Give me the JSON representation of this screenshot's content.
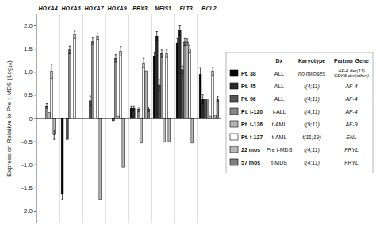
{
  "chart_data": {
    "type": "bar",
    "ylabel": "Expression Relative to Pre t-MDS (Log₁₀)",
    "categories": [
      "HOXA4",
      "HOXA5",
      "HOXA7",
      "HOXA9",
      "PBX3",
      "MEIS1",
      "FLT3",
      "BCL2"
    ],
    "ylim": [
      -2.25,
      2.25
    ],
    "yticks": [
      {
        "value": -2.0,
        "label": "-2.0"
      },
      -1.5,
      {
        "value": -1.0,
        "label": "-1.0"
      },
      -0.5,
      0,
      0.5,
      {
        "value": 1.0,
        "label": "1.0"
      },
      1.5,
      {
        "value": 2.0,
        "label": "2.0"
      }
    ],
    "grid": false,
    "legend": "right",
    "legend_headers": [
      "Dx",
      "Karyotype",
      "Partner Gene"
    ],
    "series": [
      {
        "name": "Pt. 38",
        "color": "#000000",
        "values": [
          0.0,
          -1.63,
          0.0,
          0.0,
          0.22,
          1.35,
          1.63,
          0.95
        ],
        "errors": [
          0.0,
          0.12,
          0.0,
          0.0,
          0.05,
          0.08,
          0.1,
          0.15
        ],
        "dx": "ALL",
        "karyotype": "no mitoses",
        "partner": "AF-4 der(11)\nCDK6 der(other)"
      },
      {
        "name": "Pt. 45",
        "color": "#2a2a2a",
        "values": [
          0.0,
          0.0,
          0.0,
          0.0,
          0.22,
          1.78,
          1.9,
          0.42
        ],
        "errors": [
          0.0,
          0.0,
          0.0,
          0.0,
          0.05,
          0.1,
          0.1,
          0.1
        ],
        "dx": "ALL",
        "karyotype": "t(4;11)",
        "partner": "AF-4"
      },
      {
        "name": "Pt. 96",
        "color": "#555555",
        "values": [
          0.0,
          -0.45,
          0.38,
          -0.05,
          0.0,
          0.72,
          1.05,
          0.42
        ],
        "errors": [
          0.0,
          0.0,
          0.1,
          0.0,
          0.0,
          0.12,
          0.08,
          0.0
        ],
        "dx": "ALL",
        "karyotype": "t(4;11)",
        "partner": "AF-4"
      },
      {
        "name": "Pt. t-120",
        "color": "#888888",
        "values": [
          0.27,
          1.48,
          1.67,
          1.3,
          0.2,
          1.4,
          1.65,
          0.42
        ],
        "errors": [
          0.05,
          0.08,
          0.08,
          0.08,
          0.05,
          0.08,
          0.08,
          0.0
        ],
        "dx": "t-ALL",
        "karyotype": "t(4;11)",
        "partner": "AF-4"
      },
      {
        "name": "Pt. t-126",
        "color": "#b8b8b8",
        "values": [
          0.13,
          0.0,
          0.0,
          0.05,
          -0.53,
          -0.5,
          1.65,
          0.05
        ],
        "errors": [
          0.0,
          0.0,
          0.0,
          0.0,
          0.0,
          0.0,
          0.07,
          0.0
        ],
        "dx": "t-AML",
        "karyotype": "t(9;11)",
        "partner": "AF-9"
      },
      {
        "name": "Pt. t-127",
        "color": "#ffffff",
        "values": [
          1.02,
          1.81,
          1.78,
          1.45,
          1.2,
          1.4,
          1.5,
          1.02
        ],
        "errors": [
          0.15,
          0.08,
          0.07,
          0.1,
          0.1,
          0.08,
          0.08,
          0.08
        ],
        "dx": "t-AML",
        "karyotype": "t(11;19)",
        "partner": "ENL"
      },
      {
        "name": "22 mos",
        "color": "#ffffff",
        "values": [
          -0.35,
          0.0,
          -1.75,
          -1.05,
          1.03,
          -0.5,
          -0.53,
          0.07
        ],
        "errors": [
          0.1,
          0.0,
          0.0,
          0.0,
          0.0,
          0.0,
          0.0,
          0.0
        ],
        "dx": "Pre t-MDS",
        "karyotype": "t(4;11)",
        "partner": "FRYL"
      },
      {
        "name": "57 mos",
        "color": "#aaaaaa",
        "values": [
          0.0,
          0.0,
          0.0,
          0.0,
          0.2,
          0.0,
          0.0,
          0.42
        ],
        "errors": [
          0.0,
          0.0,
          0.0,
          0.0,
          0.05,
          0.0,
          0.0,
          0.05
        ],
        "dx": "t-MDS",
        "karyotype": "t(4;11)",
        "partner": "FRYL"
      }
    ]
  }
}
